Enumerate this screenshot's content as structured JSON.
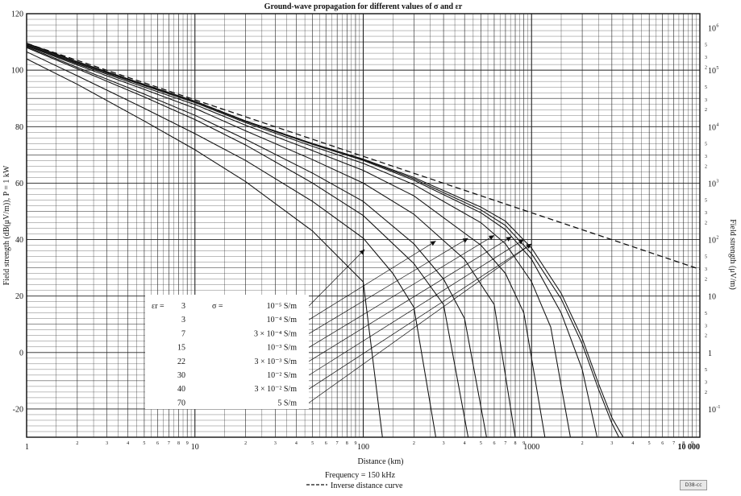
{
  "chart_data": {
    "type": "line",
    "title": "Ground-wave propagation for different values of σ and εr",
    "xlabel": "Distance (km)",
    "ylabel": "Field strength (dB(μV/m)), P = 1 kW",
    "ylabel_right": "Field strength (μV/m)",
    "x_scale": "log",
    "xlim": [
      1,
      10000
    ],
    "ylim": [
      -30,
      120
    ],
    "x_major_ticks": [
      "1",
      "10",
      "100",
      "1000",
      "10 000"
    ],
    "x_minor_ticks": [
      "2",
      "3",
      "4",
      "5",
      "6",
      "7",
      "8",
      "9"
    ],
    "y_ticks": [
      "120",
      "100",
      "80",
      "60",
      "40",
      "20",
      "0",
      "-20"
    ],
    "right_axis_major": [
      {
        "value": 115,
        "base": "10",
        "exp": "6"
      },
      {
        "value": 100,
        "base": "10",
        "exp": "5"
      },
      {
        "value": 80,
        "base": "10",
        "exp": "4"
      },
      {
        "value": 60,
        "base": "10",
        "exp": "3"
      },
      {
        "value": 40,
        "base": "10",
        "exp": "2"
      },
      {
        "value": 20,
        "base": "10",
        "exp": ""
      },
      {
        "value": 0,
        "base": "1",
        "exp": ""
      },
      {
        "value": -20,
        "base": "10",
        "exp": "-1"
      }
    ],
    "right_axis_minor": [
      "5",
      "3",
      "2"
    ],
    "footer_frequency": "Frequency = 150 kHz",
    "footer_inverse": "Inverse distance curve",
    "legend": {
      "eps_label": "εr =",
      "sigma_label": "σ =",
      "rows": [
        {
          "eps": "3",
          "sigma": "10⁻⁵ S/m"
        },
        {
          "eps": "3",
          "sigma": "10⁻⁴ S/m"
        },
        {
          "eps": "7",
          "sigma": "3 × 10⁻⁴ S/m"
        },
        {
          "eps": "15",
          "sigma": "10⁻³ S/m"
        },
        {
          "eps": "22",
          "sigma": "3 × 10⁻³ S/m"
        },
        {
          "eps": "30",
          "sigma": "10⁻² S/m"
        },
        {
          "eps": "40",
          "sigma": "3 × 10⁻² S/m"
        },
        {
          "eps": "70",
          "sigma": "5 S/m"
        }
      ]
    },
    "series": [
      {
        "style": "dashed",
        "x": [
          1,
          10,
          100,
          1000,
          10000
        ],
        "y": [
          109.5,
          89.5,
          69.5,
          49.5,
          29.5
        ]
      },
      {
        "style": "solid",
        "x": [
          1,
          2,
          5,
          10,
          20,
          50,
          100,
          200,
          500,
          700,
          1000,
          1500,
          2000,
          2500,
          3000,
          3500
        ],
        "y": [
          109.5,
          103,
          95,
          89,
          82,
          74,
          68.5,
          62,
          51.5,
          46.5,
          37,
          21,
          5,
          -11,
          -23,
          -30
        ]
      },
      {
        "style": "solid",
        "x": [
          1,
          2,
          5,
          10,
          20,
          50,
          100,
          200,
          500,
          700,
          1000,
          1500,
          2000,
          2500,
          3000,
          3300
        ],
        "y": [
          109.5,
          103,
          95,
          89,
          82,
          74,
          68.3,
          61.5,
          50.5,
          45,
          35,
          19,
          3,
          -13,
          -25,
          -30
        ]
      },
      {
        "style": "solid",
        "x": [
          1,
          2,
          5,
          10,
          20,
          50,
          100,
          200,
          500,
          700,
          1000,
          1500,
          2000,
          2450
        ],
        "y": [
          109.3,
          102.8,
          94.8,
          88.8,
          81.8,
          73.7,
          68,
          61,
          49.5,
          43.5,
          33,
          14,
          -6,
          -30
        ]
      },
      {
        "style": "solid",
        "x": [
          1,
          2,
          5,
          10,
          20,
          50,
          100,
          200,
          500,
          700,
          1000,
          1300,
          1700
        ],
        "y": [
          109,
          102.5,
          94.5,
          88.5,
          81.4,
          73,
          67,
          59.5,
          46,
          38.5,
          25,
          9,
          -30
        ]
      },
      {
        "style": "solid",
        "x": [
          1,
          2,
          5,
          10,
          20,
          50,
          100,
          200,
          500,
          700,
          900,
          1200
        ],
        "y": [
          108.8,
          102.2,
          94,
          87.8,
          80.5,
          71.5,
          64.5,
          55.5,
          38,
          28,
          14,
          -30
        ]
      },
      {
        "style": "solid",
        "x": [
          1,
          2,
          5,
          10,
          20,
          50,
          100,
          200,
          400,
          600,
          800
        ],
        "y": [
          108.6,
          101.8,
          93.2,
          86.5,
          78.5,
          68.3,
          60,
          49,
          33,
          17,
          -30
        ]
      },
      {
        "style": "solid",
        "x": [
          1,
          2,
          5,
          10,
          20,
          50,
          100,
          200,
          300,
          400,
          540
        ],
        "y": [
          108.3,
          101,
          91.5,
          84,
          75.5,
          63.5,
          53.5,
          38.5,
          26,
          12,
          -30
        ]
      },
      {
        "style": "solid",
        "x": [
          1,
          2,
          5,
          10,
          20,
          50,
          100,
          200,
          300,
          420
        ],
        "y": [
          108,
          100.5,
          90.5,
          82.5,
          73.5,
          60,
          48.5,
          31.5,
          17,
          -30
        ]
      },
      {
        "style": "solid",
        "x": [
          1,
          2,
          5,
          10,
          20,
          50,
          100,
          150,
          200,
          270
        ],
        "y": [
          106.5,
          98,
          86.5,
          77.5,
          68,
          53.5,
          40.5,
          28,
          16,
          -30
        ]
      },
      {
        "style": "solid",
        "x": [
          1,
          2,
          5,
          10,
          20,
          50,
          100,
          130
        ],
        "y": [
          104,
          95,
          82,
          71.8,
          60.5,
          43,
          25,
          -30
        ]
      }
    ],
    "arrow_tips": [
      {
        "x": 102,
        "y": 36.5
      },
      {
        "x": 270,
        "y": 39.5
      },
      {
        "x": 420,
        "y": 40.5
      },
      {
        "x": 600,
        "y": 41.5
      },
      {
        "x": 760,
        "y": 41
      },
      {
        "x": 900,
        "y": 40
      },
      {
        "x": 1000,
        "y": 38.5
      }
    ],
    "grid": true
  },
  "footer_tag": "D38-cc"
}
